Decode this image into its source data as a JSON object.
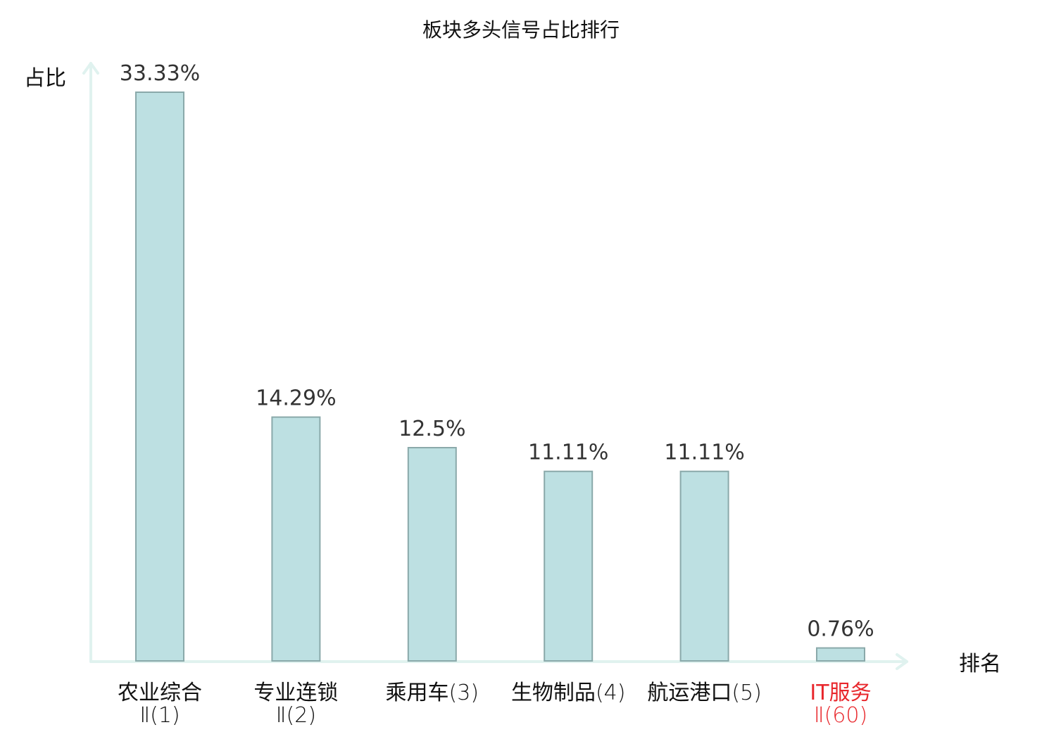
{
  "chart_data": {
    "type": "bar",
    "title": "板块多头信号占比排行",
    "ylabel": "占比",
    "xlabel": "排名",
    "ylim": [
      0,
      33.33
    ],
    "grid": false,
    "legend": "none",
    "categories": [
      {
        "line1": "农业综合",
        "line1_rank": "",
        "line2": "Ⅱ(1)",
        "highlight": false
      },
      {
        "line1": "专业连锁",
        "line1_rank": "",
        "line2": "Ⅱ(2)",
        "highlight": false
      },
      {
        "line1": "乘用车",
        "line1_rank": "(3)",
        "line2": "",
        "highlight": false
      },
      {
        "line1": "生物制品",
        "line1_rank": "(4)",
        "line2": "",
        "highlight": false
      },
      {
        "line1": "航运港口",
        "line1_rank": "(5)",
        "line2": "",
        "highlight": false
      },
      {
        "line1": "IT服务",
        "line1_rank": "",
        "line2": "Ⅱ(60)",
        "highlight": true
      }
    ],
    "values": [
      33.33,
      14.29,
      12.5,
      11.11,
      11.11,
      0.76
    ],
    "value_labels": [
      "33.33%",
      "14.29%",
      "12.5%",
      "11.11%",
      "11.11%",
      "0.76%"
    ],
    "colors": {
      "bar_fill": "#bde0e2",
      "bar_stroke": "#8aa9aa",
      "axis": "#e0f2ef",
      "text": "#111111",
      "value_text": "#333333",
      "highlight": "#e8262b"
    }
  }
}
